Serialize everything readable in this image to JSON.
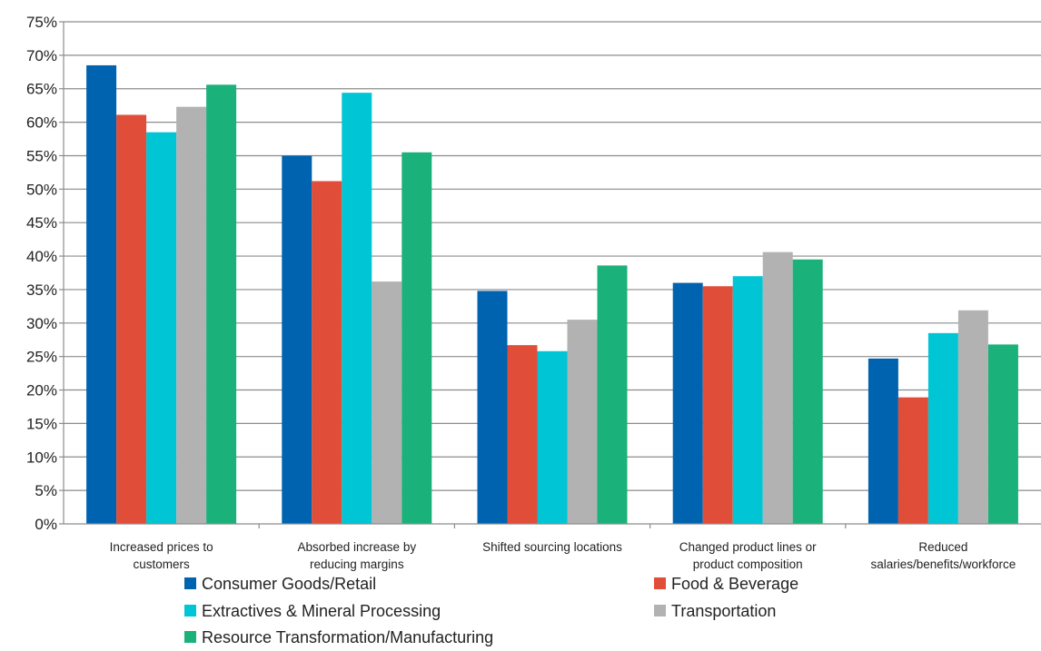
{
  "chart_data": {
    "type": "bar",
    "categories": [
      [
        "Increased prices to",
        "customers"
      ],
      [
        "Absorbed increase by",
        "reducing margins"
      ],
      [
        "Shifted sourcing locations"
      ],
      [
        "Changed product lines or",
        "product composition"
      ],
      [
        "Reduced",
        "salaries/benefits/workforce"
      ]
    ],
    "series": [
      {
        "name": "Consumer Goods/Retail",
        "color": "#0063AF",
        "values": [
          68.5,
          55.0,
          34.8,
          36.0,
          24.7
        ]
      },
      {
        "name": "Food & Beverage",
        "color": "#E04E39",
        "values": [
          61.1,
          51.2,
          26.7,
          35.5,
          18.9
        ]
      },
      {
        "name": "Extractives & Mineral Processing",
        "color": "#00C5D4",
        "values": [
          58.5,
          64.4,
          25.8,
          37.0,
          28.5
        ]
      },
      {
        "name": "Transportation",
        "color": "#B2B2B2",
        "values": [
          62.3,
          36.2,
          30.5,
          40.6,
          31.9
        ]
      },
      {
        "name": "Resource Transformation/Manufacturing",
        "color": "#1BB17A",
        "values": [
          65.6,
          55.5,
          38.6,
          39.5,
          26.8
        ]
      }
    ],
    "ylim": [
      0,
      75
    ],
    "yticks": [
      "0%",
      "5%",
      "10%",
      "15%",
      "20%",
      "25%",
      "30%",
      "35%",
      "40%",
      "45%",
      "50%",
      "55%",
      "60%",
      "65%",
      "70%",
      "75%"
    ],
    "grid": true,
    "legend_position": "bottom",
    "title": "",
    "xlabel": "",
    "ylabel": ""
  }
}
